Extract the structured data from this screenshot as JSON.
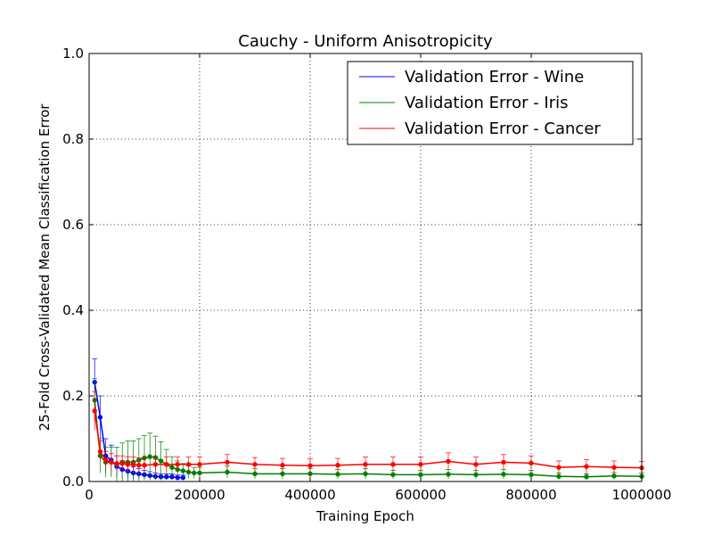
{
  "chart_data": {
    "type": "line",
    "title": "Cauchy - Uniform Anisotropicity",
    "xlabel": "Training Epoch",
    "ylabel": "25-Fold Cross-Validated Mean Classification Error",
    "xlim": [
      0,
      1000000
    ],
    "ylim": [
      0.0,
      1.0
    ],
    "grid": true,
    "legend_position": "top-right",
    "x_ticks": [
      0,
      200000,
      400000,
      600000,
      800000,
      1000000
    ],
    "x_tick_labels": [
      "0",
      "200000",
      "400000",
      "600000",
      "800000",
      "1000000"
    ],
    "y_ticks": [
      0.0,
      0.2,
      0.4,
      0.6,
      0.8,
      1.0
    ],
    "y_tick_labels": [
      "0.0",
      "0.2",
      "0.4",
      "0.6",
      "0.8",
      "1.0"
    ],
    "series": [
      {
        "name": "Validation Error - Wine",
        "color": "#0000ff",
        "x": [
          10000,
          20000,
          30000,
          40000,
          50000,
          60000,
          70000,
          80000,
          90000,
          100000,
          110000,
          120000,
          130000,
          140000,
          150000,
          160000,
          170000
        ],
        "y": [
          0.232,
          0.15,
          0.06,
          0.05,
          0.035,
          0.028,
          0.024,
          0.02,
          0.018,
          0.016,
          0.014,
          0.012,
          0.011,
          0.011,
          0.011,
          0.009,
          0.009
        ],
        "err": [
          0.055,
          0.05,
          0.04,
          0.035,
          0.025,
          0.02,
          0.017,
          0.014,
          0.012,
          0.01,
          0.009,
          0.008,
          0.007,
          0.007,
          0.007,
          0.006,
          0.006
        ]
      },
      {
        "name": "Validation Error - Iris",
        "color": "#008000",
        "x": [
          10000,
          20000,
          30000,
          40000,
          50000,
          60000,
          70000,
          80000,
          90000,
          100000,
          110000,
          120000,
          130000,
          140000,
          150000,
          160000,
          170000,
          180000,
          190000,
          200000,
          250000,
          300000,
          350000,
          400000,
          450000,
          500000,
          550000,
          600000,
          650000,
          700000,
          750000,
          800000,
          850000,
          900000,
          950000,
          1000000
        ],
        "y": [
          0.19,
          0.06,
          0.045,
          0.045,
          0.04,
          0.045,
          0.045,
          0.045,
          0.05,
          0.055,
          0.058,
          0.056,
          0.048,
          0.04,
          0.033,
          0.028,
          0.025,
          0.022,
          0.02,
          0.02,
          0.022,
          0.018,
          0.018,
          0.018,
          0.017,
          0.018,
          0.016,
          0.016,
          0.017,
          0.016,
          0.017,
          0.016,
          0.012,
          0.011,
          0.013,
          0.012
        ],
        "err": [
          0.05,
          0.04,
          0.035,
          0.035,
          0.04,
          0.045,
          0.05,
          0.05,
          0.05,
          0.052,
          0.055,
          0.05,
          0.045,
          0.035,
          0.025,
          0.02,
          0.017,
          0.015,
          0.013,
          0.013,
          0.014,
          0.012,
          0.012,
          0.012,
          0.011,
          0.012,
          0.01,
          0.01,
          0.011,
          0.01,
          0.011,
          0.01,
          0.008,
          0.007,
          0.008,
          0.008
        ]
      },
      {
        "name": "Validation Error - Cancer",
        "color": "#ff0000",
        "x": [
          10000,
          20000,
          30000,
          40000,
          50000,
          60000,
          70000,
          80000,
          90000,
          100000,
          120000,
          140000,
          160000,
          180000,
          200000,
          250000,
          300000,
          350000,
          400000,
          450000,
          500000,
          550000,
          600000,
          650000,
          700000,
          750000,
          800000,
          850000,
          900000,
          950000,
          1000000
        ],
        "y": [
          0.165,
          0.07,
          0.05,
          0.045,
          0.042,
          0.042,
          0.04,
          0.04,
          0.038,
          0.038,
          0.04,
          0.04,
          0.04,
          0.04,
          0.04,
          0.045,
          0.04,
          0.038,
          0.037,
          0.038,
          0.04,
          0.04,
          0.04,
          0.047,
          0.04,
          0.045,
          0.043,
          0.033,
          0.035,
          0.033,
          0.032
        ],
        "err": [
          0.045,
          0.025,
          0.02,
          0.02,
          0.018,
          0.018,
          0.017,
          0.017,
          0.017,
          0.017,
          0.018,
          0.017,
          0.017,
          0.017,
          0.017,
          0.018,
          0.016,
          0.016,
          0.016,
          0.016,
          0.017,
          0.017,
          0.017,
          0.02,
          0.017,
          0.018,
          0.017,
          0.015,
          0.016,
          0.015,
          0.015
        ]
      }
    ]
  }
}
